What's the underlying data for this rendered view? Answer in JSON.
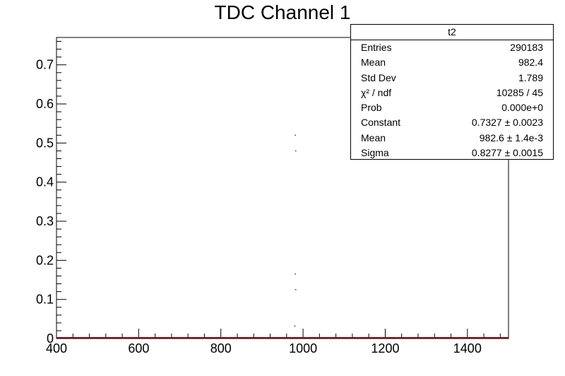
{
  "chart_data": {
    "type": "scatter",
    "title": "TDC Channel 1",
    "xlabel": "",
    "ylabel": "",
    "xlim": [
      400,
      1500
    ],
    "ylim": [
      0,
      0.77
    ],
    "x_ticks": [
      "400",
      "600",
      "800",
      "1000",
      "1200",
      "1400"
    ],
    "y_ticks": [
      "0",
      "0.1",
      "0.2",
      "0.3",
      "0.4",
      "0.5",
      "0.6",
      "0.7"
    ],
    "points": [
      {
        "x": 981,
        "y": 0.52
      },
      {
        "x": 982,
        "y": 0.48
      },
      {
        "x": 981,
        "y": 0.165
      },
      {
        "x": 982,
        "y": 0.125
      },
      {
        "x": 980,
        "y": 0.032
      }
    ],
    "point_color": "#1f2f9f",
    "baseline_color": "#8b0000",
    "grid": false,
    "stats_box": {
      "name": "t2",
      "rows": [
        {
          "label": "Entries",
          "value": "290183"
        },
        {
          "label": "Mean",
          "value": "982.4"
        },
        {
          "label": "Std Dev",
          "value": "1.789"
        },
        {
          "label": "χ² / ndf",
          "value": "10285 / 45"
        },
        {
          "label": "Prob",
          "value": "0.000e+0"
        },
        {
          "label": "Constant",
          "value": "0.7327 ± 0.0023"
        },
        {
          "label": "Mean",
          "value": "982.6 ± 1.4e-3"
        },
        {
          "label": "Sigma",
          "value": "0.8277 ± 0.0015"
        }
      ]
    }
  }
}
